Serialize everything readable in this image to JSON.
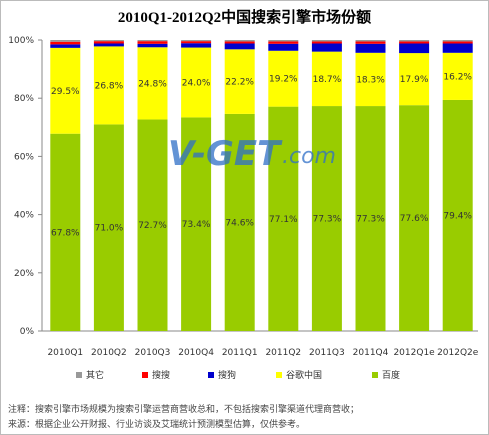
{
  "chart_data": {
    "type": "bar",
    "stacked": true,
    "title": "2010Q1-2012Q2中国搜索引擎市场份额",
    "categories": [
      "2010Q1",
      "2010Q2",
      "2010Q3",
      "2010Q4",
      "2011Q1",
      "2011Q2",
      "2011Q3",
      "2011Q4",
      "2012Q1e",
      "2012Q2e"
    ],
    "ylim": [
      0,
      100
    ],
    "yticks": [
      "0%",
      "20%",
      "40%",
      "60%",
      "80%",
      "100%"
    ],
    "grid": false,
    "legend_position": "bottom",
    "series": [
      {
        "name": "百度",
        "color": "#99cc00",
        "values": [
          67.8,
          71.0,
          72.7,
          73.4,
          74.6,
          77.1,
          77.3,
          77.3,
          77.6,
          79.4
        ],
        "labels": [
          "67.8%",
          "71.0%",
          "72.7%",
          "73.4%",
          "74.6%",
          "77.1%",
          "77.3%",
          "77.3%",
          "77.6%",
          "79.4%"
        ]
      },
      {
        "name": "谷歌中国",
        "color": "#ffff00",
        "values": [
          29.5,
          26.8,
          24.8,
          24.0,
          22.2,
          19.2,
          18.7,
          18.3,
          17.9,
          16.2
        ],
        "labels": [
          "29.5%",
          "26.8%",
          "24.8%",
          "24.0%",
          "22.2%",
          "19.2%",
          "18.7%",
          "18.3%",
          "17.9%",
          "16.2%"
        ]
      },
      {
        "name": "搜狗",
        "color": "#0000cc",
        "values": [
          1.2,
          1.0,
          1.2,
          1.5,
          2.0,
          2.4,
          2.8,
          3.1,
          3.3,
          3.2
        ]
      },
      {
        "name": "搜搜",
        "color": "#ff0000",
        "values": [
          0.9,
          0.8,
          0.9,
          0.7,
          0.7,
          0.8,
          0.7,
          0.8,
          0.7,
          0.7
        ]
      },
      {
        "name": "其它",
        "color": "#999999",
        "values": [
          0.6,
          0.4,
          0.4,
          0.4,
          0.5,
          0.5,
          0.5,
          0.5,
          0.5,
          0.5
        ]
      }
    ],
    "legend_order": [
      "其它",
      "搜搜",
      "搜狗",
      "谷歌中国",
      "百度"
    ]
  },
  "watermark": {
    "main": "V-GET",
    "suffix": ".com"
  },
  "notes": [
    "注释：搜索引擎市场规模为搜索引擎运营商营收总和，不包括搜索引擎渠道代理商营收；",
    "来源：根据企业公开财报、行业访谈及艾瑞统计预测模型估算，仅供参考。"
  ]
}
